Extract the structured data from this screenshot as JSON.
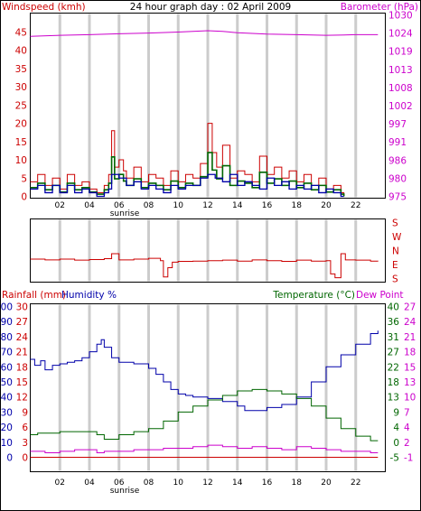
{
  "chart_data": [
    {
      "type": "line",
      "title": "24 hour graph day : 02 April 2009",
      "ylabel_left": "Windspeed (kmh)",
      "ylabel_right": "Barometer (hPa)",
      "x_ticks": [
        "02",
        "04",
        "06",
        "08",
        "10",
        "12",
        "14",
        "16",
        "18",
        "20",
        "22"
      ],
      "x_annotation": "sunrise",
      "y_left_ticks": [
        "0",
        "5",
        "10",
        "15",
        "20",
        "25",
        "30",
        "35",
        "40",
        "45"
      ],
      "y_right_ticks": [
        "975",
        "980",
        "986",
        "991",
        "997",
        "1002",
        "1008",
        "1013",
        "1019",
        "1024",
        "1030"
      ],
      "ylim_left": [
        0,
        48
      ],
      "ylim_right": [
        975,
        1030
      ],
      "grid": "vertical",
      "colors": {
        "gust": "#cc0000",
        "average": "#0000aa",
        "wind_extra": "#006600",
        "barometer": "#cc00cc"
      },
      "series": [
        {
          "kind": "barometer",
          "axis": "right",
          "x": [
            0,
            2,
            4,
            6,
            8,
            10,
            11,
            12,
            13,
            14,
            16,
            18,
            20,
            22,
            23.5
          ],
          "values": [
            1023.5,
            1023.8,
            1024,
            1024.3,
            1024.5,
            1024.8,
            1025,
            1025.2,
            1025,
            1024.6,
            1024.2,
            1024,
            1023.8,
            1024,
            1024
          ]
        },
        {
          "kind": "gust",
          "axis": "left",
          "x": [
            0,
            0.5,
            1,
            1.5,
            2,
            2.5,
            3,
            3.5,
            4,
            4.5,
            5,
            5.3,
            5.5,
            5.7,
            6,
            6.3,
            6.5,
            7,
            7.5,
            8,
            8.5,
            9,
            9.5,
            10,
            10.5,
            11,
            11.5,
            12,
            12.3,
            12.6,
            13,
            13.5,
            14,
            14.5,
            15,
            15.5,
            16,
            16.5,
            17,
            17.5,
            18,
            18.5,
            19,
            19.5,
            20,
            20.5,
            21,
            21.2
          ],
          "values": [
            4,
            6,
            3,
            5,
            2,
            6,
            3,
            4,
            2,
            1,
            3,
            6,
            18,
            8,
            10,
            7,
            5,
            8,
            4,
            6,
            5,
            3,
            7,
            4,
            6,
            5,
            9,
            20,
            12,
            8,
            14,
            5,
            7,
            6,
            4,
            11,
            6,
            8,
            5,
            7,
            4,
            6,
            3,
            5,
            2,
            3,
            1,
            0
          ]
        },
        {
          "kind": "average",
          "axis": "left",
          "x": [
            0,
            0.5,
            1,
            1.5,
            2,
            2.5,
            3,
            3.5,
            4,
            4.5,
            5,
            5.3,
            5.5,
            6,
            6.5,
            7,
            7.5,
            8,
            8.5,
            9,
            9.5,
            10,
            10.5,
            11,
            11.5,
            12,
            12.5,
            13,
            13.5,
            14,
            14.5,
            15,
            15.5,
            16,
            16.5,
            17,
            17.5,
            18,
            18.5,
            19,
            19.5,
            20,
            20.5,
            21,
            21.2
          ],
          "values": [
            2,
            3,
            1,
            3,
            1,
            3,
            1,
            2,
            1,
            0,
            1,
            2,
            6,
            5,
            3,
            4,
            2,
            3,
            2,
            1,
            3,
            2,
            3,
            3,
            5,
            6,
            5,
            4,
            6,
            3,
            4,
            3,
            2,
            5,
            3,
            4,
            2,
            3,
            2,
            3,
            1,
            2,
            1,
            0,
            0
          ]
        }
      ]
    },
    {
      "type": "line",
      "title": "",
      "y_right_ticks": [
        "S",
        "E",
        "N",
        "W",
        "S"
      ],
      "ylim": [
        0,
        360
      ],
      "grid": "vertical",
      "colors": {
        "direction": "#cc0000"
      },
      "series": [
        {
          "kind": "wind_direction",
          "x": [
            0,
            1,
            2,
            3,
            4,
            5,
            5.5,
            6,
            7,
            8,
            8.8,
            9,
            9.3,
            9.6,
            10,
            11,
            12,
            13,
            14,
            15,
            16,
            17,
            18,
            19,
            20,
            20.3,
            20.6,
            21,
            21.3,
            22,
            23,
            23.5
          ],
          "values": [
            125,
            120,
            125,
            118,
            122,
            128,
            160,
            120,
            125,
            130,
            115,
            10,
            70,
            105,
            110,
            112,
            115,
            118,
            112,
            120,
            115,
            110,
            118,
            112,
            115,
            30,
            5,
            160,
            120,
            118,
            112,
            110
          ]
        }
      ]
    },
    {
      "type": "line",
      "title": "",
      "ylabel_left_1": "Rainfall (mm)",
      "ylabel_left_2": "Humidity %",
      "ylabel_right_1": "Temperature (°C)",
      "ylabel_right_2": "Dew Point",
      "x_ticks": [
        "02",
        "04",
        "06",
        "08",
        "10",
        "12",
        "14",
        "16",
        "18",
        "20",
        "22"
      ],
      "x_annotation": "sunrise",
      "y_humidity_ticks": [
        "0",
        "10",
        "20",
        "30",
        "40",
        "50",
        "60",
        "70",
        "80",
        "90",
        "100"
      ],
      "y_rainfall_ticks": [
        "0",
        "3",
        "6",
        "9",
        "12",
        "15",
        "18",
        "21",
        "24",
        "27",
        "30"
      ],
      "y_temperature_ticks": [
        "-5",
        "0",
        "4",
        "9",
        "13",
        "18",
        "22",
        "27",
        "31",
        "36",
        "40"
      ],
      "y_dewpoint_ticks": [
        "-1",
        "2",
        "4",
        "7",
        "10",
        "13",
        "15",
        "18",
        "21",
        "24",
        "27"
      ],
      "ylim_humidity": [
        0,
        100
      ],
      "grid": "vertical",
      "colors": {
        "rainfall": "#cc0000",
        "humidity": "#0000aa",
        "temperature": "#006600",
        "dewpoint": "#cc00cc"
      },
      "series": [
        {
          "kind": "rainfall",
          "x": [
            0,
            23.5
          ],
          "values": [
            0,
            0
          ]
        },
        {
          "kind": "humidity",
          "x": [
            0,
            0.3,
            0.7,
            1,
            1.5,
            2,
            2.5,
            3,
            3.5,
            4,
            4.5,
            4.8,
            5,
            5.5,
            6,
            7,
            8,
            8.5,
            9,
            9.5,
            10,
            10.5,
            11,
            12,
            13,
            14,
            14.5,
            15,
            16,
            17,
            18,
            19,
            20,
            21,
            22,
            23,
            23.5
          ],
          "values": [
            65,
            61,
            64,
            58,
            61,
            62,
            63,
            64,
            66,
            70,
            75,
            78,
            73,
            66,
            63,
            62,
            59,
            55,
            50,
            45,
            42,
            41,
            40,
            39,
            37,
            34,
            31,
            31,
            33,
            35,
            40,
            50,
            60,
            68,
            75,
            82,
            84
          ]
        },
        {
          "kind": "temperature",
          "x": [
            0,
            0.5,
            1,
            2,
            3,
            4,
            4.5,
            5,
            6,
            7,
            8,
            9,
            10,
            11,
            12,
            13,
            14,
            15,
            16,
            17,
            18,
            19,
            20,
            21,
            22,
            23,
            23.5
          ],
          "values": [
            15,
            16,
            16,
            17,
            17,
            17,
            15,
            12,
            15,
            17,
            19,
            24,
            30,
            34,
            38,
            41,
            44,
            45,
            44,
            42,
            39,
            34,
            26,
            19,
            14,
            11,
            11
          ]
        },
        {
          "kind": "dewpoint",
          "x": [
            0,
            1,
            2,
            3,
            4,
            4.5,
            5,
            6,
            7,
            8,
            9,
            10,
            11,
            12,
            13,
            14,
            15,
            16,
            17,
            18,
            19,
            20,
            21,
            22,
            23,
            23.5
          ],
          "values": [
            4,
            3,
            4,
            5,
            5,
            3,
            4,
            4,
            5,
            5,
            6,
            6,
            7,
            8,
            7,
            6,
            7,
            6,
            5,
            7,
            6,
            5,
            4,
            4,
            3,
            3
          ]
        }
      ]
    }
  ]
}
